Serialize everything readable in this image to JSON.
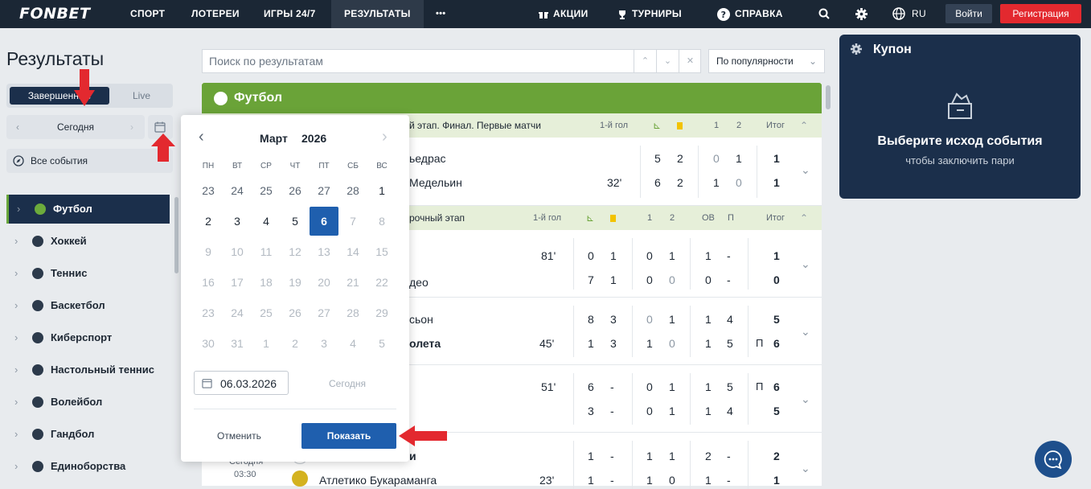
{
  "topbar": {
    "logo": "FONBET",
    "nav": [
      "СПОРТ",
      "ЛОТЕРЕИ",
      "ИГРЫ 24/7",
      "РЕЗУЛЬТАТЫ",
      "•••"
    ],
    "promo": "АКЦИИ",
    "tournaments": "ТУРНИРЫ",
    "help": "СПРАВКА",
    "lang": "RU",
    "login": "Войти",
    "register": "Регистрация"
  },
  "sidebar": {
    "title": "Результаты",
    "tab_done": "Завершенные",
    "tab_live": "Live",
    "day": "Сегодня",
    "all_events": "Все события",
    "sports": [
      "Футбол",
      "Хоккей",
      "Теннис",
      "Баскетбол",
      "Киберспорт",
      "Настольный теннис",
      "Волейбол",
      "Гандбол",
      "Единоборства"
    ]
  },
  "search": {
    "placeholder": "Поиск по результатам",
    "sort": "По популярности"
  },
  "main": {
    "sport_header": "Футбол",
    "leagues": [
      {
        "name": "й этап. Финал. Первые матчи",
        "cols": [
          "1-й гол",
          "1",
          "2",
          "Итог"
        ]
      },
      {
        "name": "рочный этап",
        "cols": [
          "1-й гол",
          "1",
          "2",
          "ОВ",
          "П",
          "Итог"
        ]
      }
    ],
    "matches": [
      {
        "team1": "ьедрас",
        "team2": "Медельин",
        "time": "32'",
        "s1": [
          "5",
          "2",
          "0",
          "1",
          "1"
        ],
        "s2": [
          "6",
          "2",
          "1",
          "0",
          "1"
        ]
      },
      {
        "team1": "",
        "team2": "део",
        "time": "81'",
        "s1": [
          "0",
          "1",
          "0",
          "1",
          "1",
          "-",
          "1"
        ],
        "s2": [
          "7",
          "1",
          "0",
          "0",
          "0",
          "-",
          "0"
        ]
      },
      {
        "team1": "сьон",
        "team2": "олета",
        "time": "45'",
        "s1": [
          "8",
          "3",
          "0",
          "1",
          "1",
          "4",
          "5"
        ],
        "s2": [
          "1",
          "3",
          "1",
          "0",
          "1",
          "5",
          "6"
        ],
        "p2": "П"
      },
      {
        "team1": "",
        "team2": "",
        "time": "51'",
        "s1": [
          "6",
          "-",
          "0",
          "1",
          "1",
          "5",
          "6"
        ],
        "s2": [
          "3",
          "-",
          "0",
          "1",
          "1",
          "4",
          "5"
        ],
        "p1": "П"
      },
      {
        "team1": "и",
        "team2": "Атлетико Букараманга",
        "time": "23'",
        "date": "Сегодня",
        "clock": "03:30",
        "s1": [
          "1",
          "-",
          "1",
          "1",
          "2",
          "-",
          "2"
        ],
        "s2": [
          "1",
          "-",
          "1",
          "0",
          "1",
          "-",
          "1"
        ]
      }
    ]
  },
  "calendar": {
    "month": "Март",
    "year": "2026",
    "dow": [
      "ПН",
      "ВТ",
      "СР",
      "ЧТ",
      "ПТ",
      "СБ",
      "ВС"
    ],
    "days": [
      "23",
      "24",
      "25",
      "26",
      "27",
      "28",
      "1",
      "2",
      "3",
      "4",
      "5",
      "6",
      "7",
      "8",
      "9",
      "10",
      "11",
      "12",
      "13",
      "14",
      "15",
      "16",
      "17",
      "18",
      "19",
      "20",
      "21",
      "22",
      "23",
      "24",
      "25",
      "26",
      "27",
      "28",
      "29",
      "30",
      "31",
      "1",
      "2",
      "3",
      "4",
      "5"
    ],
    "date_value": "06.03.2026",
    "today": "Сегодня",
    "cancel": "Отменить",
    "show": "Показать"
  },
  "coupon": {
    "title": "Купон",
    "main": "Выберите исход события",
    "sub": "чтобы заключить пари"
  },
  "colors": {
    "accent": "#1f5fae",
    "green": "#6aa338",
    "red": "#e3292f",
    "navy": "#1b2f4b"
  }
}
